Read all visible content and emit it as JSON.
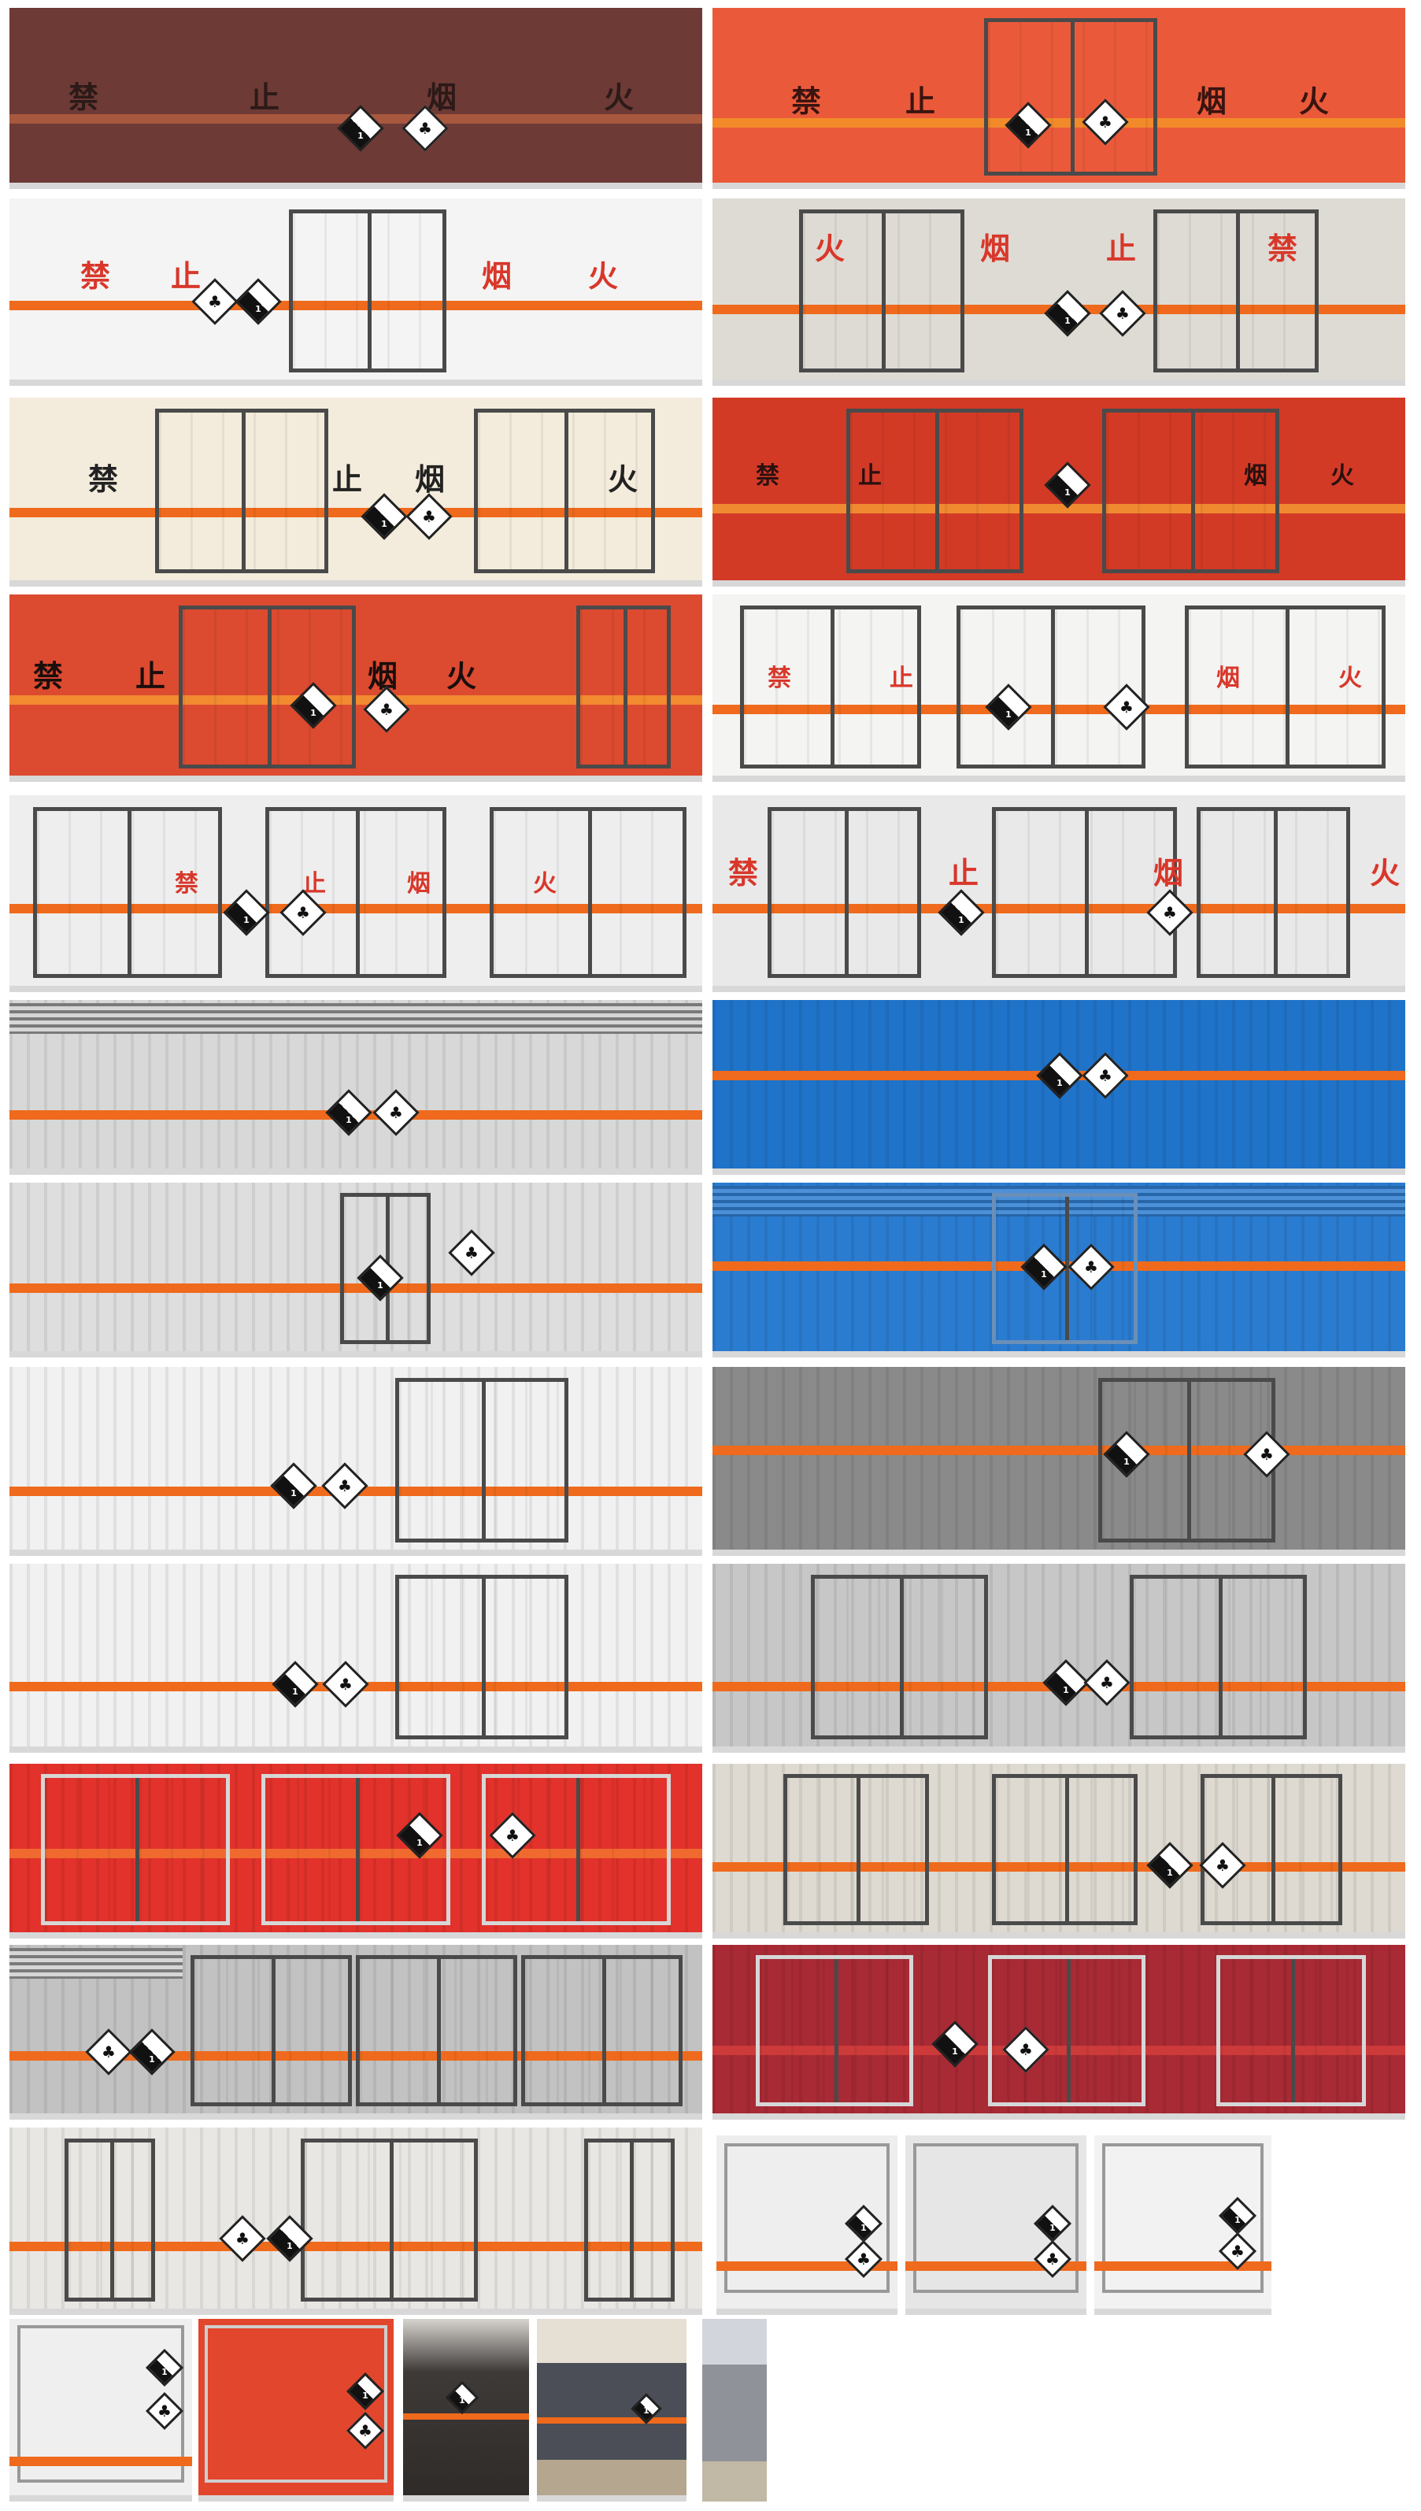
{
  "warning_text": [
    "禁",
    "止",
    "烟",
    "火"
  ],
  "warning_text_reversed": [
    "火",
    "烟",
    "止",
    "禁"
  ],
  "colors": {
    "stripe": "#ef6a1c",
    "panels": [
      "#6e3a36",
      "#ea5a3a",
      "#f4f4f4",
      "#dedbd4",
      "#f3ecdc",
      "#d23a26",
      "#dc4a30",
      "#f4f4f2",
      "#eeeeee",
      "#e9e9e9",
      "#d8d8d8",
      "#1f73c9",
      "#dedede",
      "#2a7cd0",
      "#f1f1f1",
      "#8a8a8a",
      "#f1f1f1",
      "#c7c7c7",
      "#e2322b",
      "#dedad2",
      "#c2c2c2",
      "#a82a34",
      "#e9e7e3"
    ]
  },
  "hazard_labels": {
    "class_symbol": "✸",
    "environment_symbol": "♣",
    "class_text": "1"
  }
}
